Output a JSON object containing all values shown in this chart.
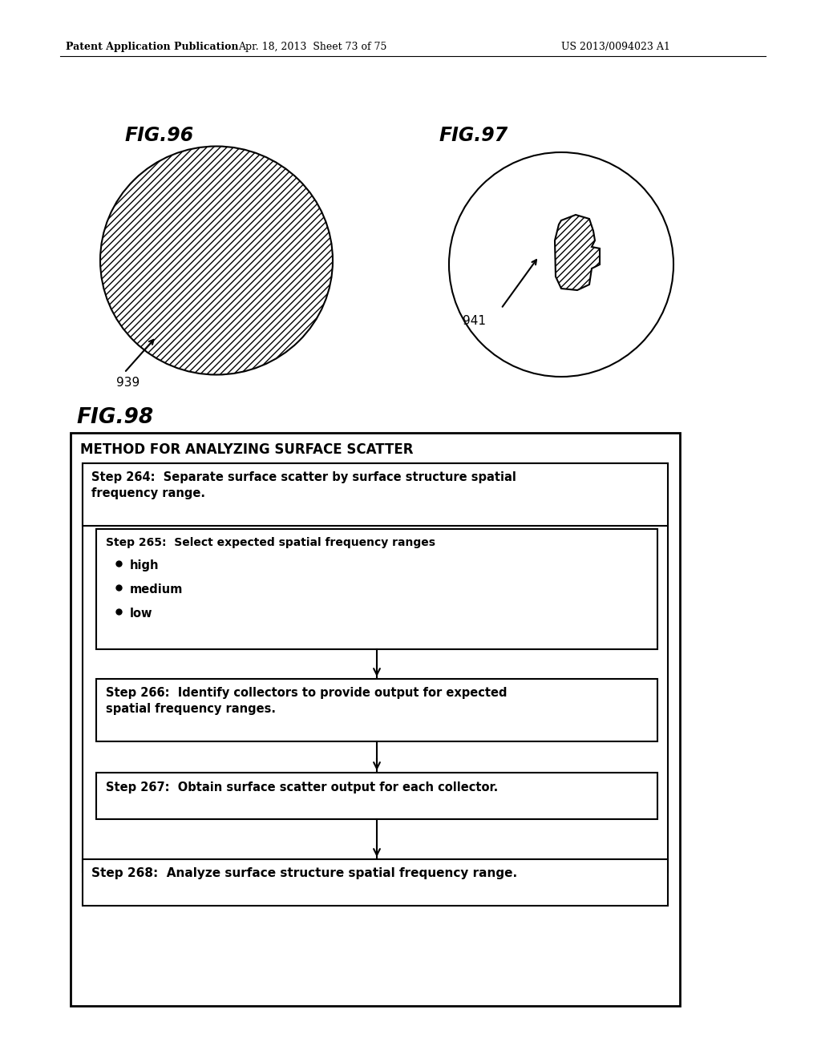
{
  "header_left": "Patent Application Publication",
  "header_mid": "Apr. 18, 2013  Sheet 73 of 75",
  "header_right": "US 2013/0094023 A1",
  "fig96_label": "FIG.96",
  "fig97_label": "FIG.97",
  "fig98_label": "FIG.98",
  "label_939": "939",
  "label_941": "941",
  "flowchart_title": "METHOD FOR ANALYZING SURFACE SCATTER",
  "step264": "Step 264:  Separate surface scatter by surface structure spatial\nfrequency range.",
  "step265": "Step 265:  Select expected spatial frequency ranges",
  "bullets": [
    "high",
    "medium",
    "low"
  ],
  "step266": "Step 266:  Identify collectors to provide output for expected\nspatial frequency ranges.",
  "step267": "Step 267:  Obtain surface scatter output for each collector.",
  "step268": "Step 268:  Analyze surface structure spatial frequency range.",
  "bg_color": "#ffffff",
  "text_color": "#000000",
  "hatch_pattern": "////",
  "line_color": "#000000"
}
